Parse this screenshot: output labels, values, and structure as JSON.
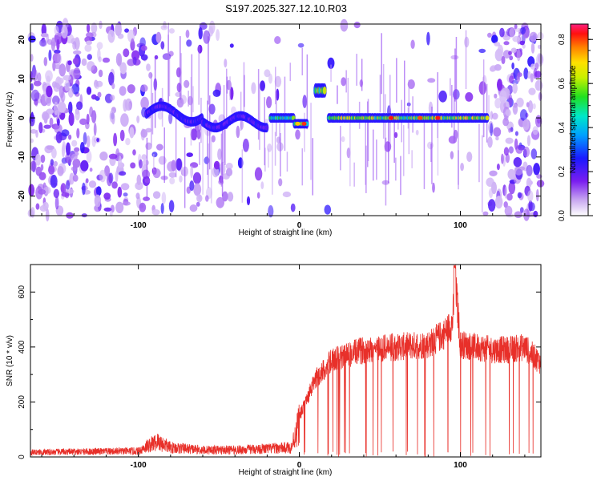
{
  "title": "S197.2025.327.12.10.R03",
  "chart_data": [
    {
      "type": "heatmap",
      "xlabel": "Height of straight line (km)",
      "ylabel": "Frequency (Hz)",
      "xlim": [
        -167,
        150
      ],
      "ylim": [
        -25,
        24
      ],
      "xticks": [
        -100,
        0,
        100
      ],
      "yticks": [
        -20,
        -10,
        0,
        10,
        20
      ],
      "colorbar": {
        "label": "Normalized spectral amplitude",
        "range": [
          0.0,
          0.87
        ],
        "ticks": [
          0.0,
          0.2,
          0.4,
          0.6,
          0.8
        ]
      },
      "features": {
        "noise_left_end_km": -95,
        "noise_right_start_km": 118,
        "gap_km": [
          8,
          16
        ],
        "band_segments": [
          {
            "x": [
              -95,
              -60
            ],
            "freq_hz": 2,
            "amp": 0.2
          },
          {
            "x": [
              -60,
              -20
            ],
            "freq_hz": -2,
            "amp": 0.2
          },
          {
            "x": [
              -18,
              5
            ],
            "freq_hz": 0,
            "amp": 0.45
          },
          {
            "x": [
              10,
              16
            ],
            "freq_hz": 7,
            "amp": 0.5
          },
          {
            "x": [
              18,
              117
            ],
            "freq_hz": 0,
            "amp": 0.55
          }
        ]
      }
    },
    {
      "type": "line",
      "xlabel": "Height of straight line (km)",
      "ylabel": "SNR (10 * v/v)",
      "xlim": [
        -167,
        150
      ],
      "ylim": [
        0,
        700
      ],
      "xticks": [
        -100,
        0,
        100
      ],
      "yticks": [
        0,
        200,
        400,
        600
      ],
      "series": [
        {
          "color": "#e8302a",
          "profile_x": [
            -167,
            -100,
            -95,
            -88,
            -80,
            -60,
            -40,
            -20,
            -5,
            0,
            5,
            10,
            20,
            40,
            60,
            80,
            90,
            95,
            97,
            100,
            110,
            120,
            130,
            140,
            150
          ],
          "profile_y": [
            20,
            25,
            45,
            65,
            40,
            30,
            30,
            35,
            40,
            150,
            220,
            290,
            360,
            400,
            410,
            420,
            460,
            500,
            650,
            420,
            410,
            400,
            400,
            410,
            350
          ]
        }
      ]
    }
  ]
}
